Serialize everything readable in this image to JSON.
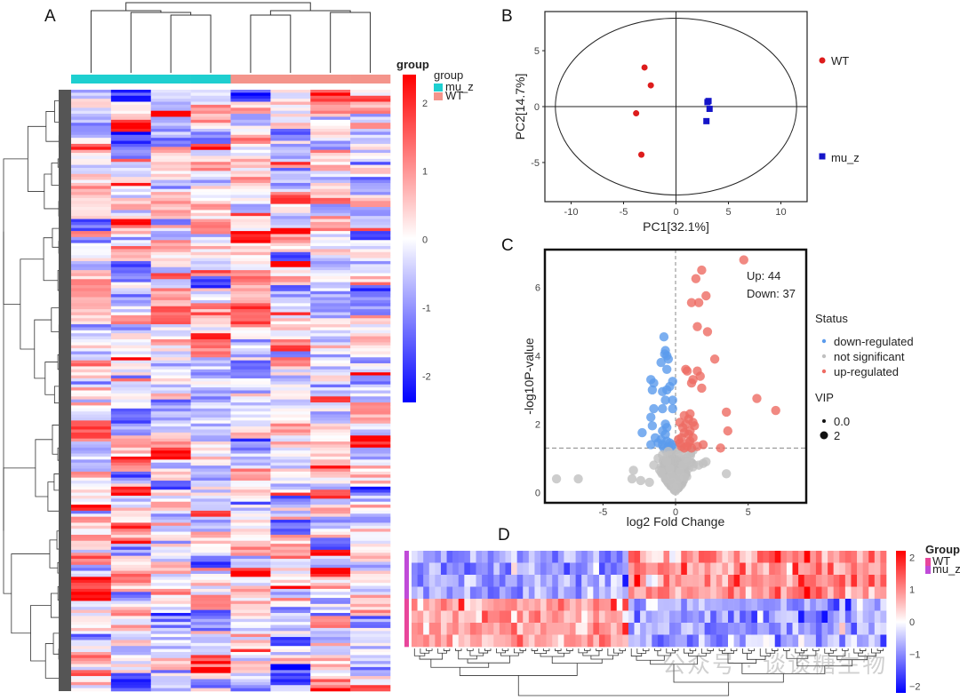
{
  "panels": {
    "A": {
      "label": "A"
    },
    "B": {
      "label": "B"
    },
    "C": {
      "label": "C"
    },
    "D": {
      "label": "D"
    }
  },
  "watermark": "公众号 · 谈谈糖生物",
  "chart_data": [
    {
      "id": "A",
      "type": "heatmap",
      "title": "",
      "columns": 8,
      "rows": 200,
      "column_groups": [
        "mu_z",
        "mu_z",
        "mu_z",
        "mu_z",
        "WT",
        "WT",
        "WT",
        "WT"
      ],
      "annotation_title": "group",
      "legend_title": "group",
      "legend": [
        {
          "name": "mu_z",
          "color": "#1ecfd0"
        },
        {
          "name": "WT",
          "color": "#f4948b"
        }
      ],
      "colorbar": {
        "range": [
          -2.4,
          2.4
        ],
        "ticks": [
          2,
          1,
          0,
          -1,
          -2
        ],
        "low": "#0000ff",
        "mid": "#ffffff",
        "high": "#ff0000"
      },
      "row_dendrogram": true,
      "column_dendrogram": true
    },
    {
      "id": "B",
      "type": "scatter",
      "title": "",
      "xlabel": "PC1[32.1%]",
      "ylabel": "PC2[14.7%]",
      "xlim": [
        -12.5,
        12.5
      ],
      "ylim": [
        -8.5,
        8.5
      ],
      "xticks": [
        -10,
        -5,
        0,
        5,
        10
      ],
      "yticks": [
        5,
        0,
        -5
      ],
      "ellipse": {
        "rx": 11.5,
        "ry": 7.9
      },
      "series": [
        {
          "name": "WT",
          "color": "#dd1c1c",
          "marker": "circle",
          "points": [
            [
              -3.0,
              3.5
            ],
            [
              -2.4,
              1.9
            ],
            [
              -3.8,
              -0.6
            ],
            [
              -3.3,
              -4.3
            ]
          ]
        },
        {
          "name": "mu_z",
          "color": "#1414c8",
          "marker": "square",
          "points": [
            [
              3.1,
              0.5
            ],
            [
              3.0,
              0.4
            ],
            [
              3.2,
              -0.2
            ],
            [
              2.9,
              -1.3
            ]
          ]
        }
      ],
      "legend": "right"
    },
    {
      "id": "C",
      "type": "scatter",
      "title": "",
      "xlabel": "log2 Fold Change",
      "ylabel": "-log10P-value",
      "xlim": [
        -9,
        9
      ],
      "ylim": [
        -0.3,
        7.1
      ],
      "xticks": [
        -5,
        0,
        5
      ],
      "yticks": [
        0,
        2,
        4,
        6
      ],
      "hline": 1.3,
      "vline": 0,
      "annotation": [
        "Up: 44",
        "Down: 37"
      ],
      "legend_status_title": "Status",
      "legend_vip_title": "VIP",
      "legend_vip": [
        "0.0",
        "2"
      ],
      "series": [
        {
          "name": "down-regulated",
          "color": "#5b9bec",
          "points": [
            [
              -0.8,
              4.55
            ],
            [
              -0.7,
              4.15
            ],
            [
              -0.75,
              4.05
            ],
            [
              -0.6,
              4.0
            ],
            [
              -0.5,
              3.9
            ],
            [
              -1.0,
              3.8
            ],
            [
              -0.6,
              3.6
            ],
            [
              -1.7,
              3.3
            ],
            [
              -1.5,
              3.2
            ],
            [
              -0.2,
              3.25
            ],
            [
              -1.6,
              3.0
            ],
            [
              -0.9,
              2.95
            ],
            [
              -0.6,
              3.0
            ],
            [
              -0.4,
              3.1
            ],
            [
              -0.7,
              2.7
            ],
            [
              -0.2,
              2.7
            ],
            [
              -1.5,
              2.45
            ],
            [
              -0.9,
              2.45
            ],
            [
              -0.2,
              2.45
            ],
            [
              -1.7,
              2.2
            ],
            [
              -0.7,
              2.0
            ],
            [
              -0.6,
              1.9
            ],
            [
              -1.6,
              1.95
            ],
            [
              -2.3,
              1.75
            ],
            [
              -1.4,
              1.6
            ],
            [
              -0.9,
              1.8
            ],
            [
              -0.7,
              1.7
            ],
            [
              -1.7,
              1.4
            ],
            [
              -0.9,
              1.4
            ],
            [
              -0.5,
              1.35
            ],
            [
              -0.3,
              1.35
            ],
            [
              -0.6,
              1.5
            ],
            [
              -1.0,
              1.55
            ],
            [
              -0.4,
              1.45
            ],
            [
              -0.8,
              1.3
            ],
            [
              -0.2,
              1.4
            ],
            [
              -1.2,
              1.45
            ]
          ]
        },
        {
          "name": "not significant",
          "color": "#c0c0c0",
          "points": [
            [
              -8.2,
              0.4
            ],
            [
              -6.7,
              0.4
            ],
            [
              -2.9,
              0.65
            ],
            [
              -3.0,
              0.4
            ],
            [
              -2.4,
              0.35
            ],
            [
              -1.8,
              0.3
            ],
            [
              -1.5,
              0.8
            ],
            [
              -1.2,
              1.0
            ],
            [
              -0.9,
              1.1
            ],
            [
              -0.6,
              0.9
            ],
            [
              -0.4,
              0.7
            ],
            [
              -0.3,
              0.5
            ],
            [
              -0.2,
              0.3
            ],
            [
              -0.1,
              0.15
            ],
            [
              0.0,
              0.05
            ],
            [
              0.1,
              0.2
            ],
            [
              0.2,
              0.4
            ],
            [
              0.3,
              0.6
            ],
            [
              0.5,
              0.8
            ],
            [
              0.7,
              1.0
            ],
            [
              0.9,
              0.9
            ],
            [
              1.2,
              0.75
            ],
            [
              1.6,
              0.8
            ],
            [
              1.9,
              0.85
            ],
            [
              2.1,
              0.9
            ],
            [
              1.0,
              1.15
            ],
            [
              -1.0,
              0.6
            ],
            [
              -0.7,
              0.4
            ],
            [
              0.6,
              0.45
            ],
            [
              3.5,
              0.55
            ],
            [
              -0.5,
              1.2
            ],
            [
              0.4,
              1.15
            ]
          ]
        },
        {
          "name": "up-regulated",
          "color": "#ee6b63",
          "points": [
            [
              4.7,
              6.8
            ],
            [
              1.8,
              6.5
            ],
            [
              1.4,
              6.25
            ],
            [
              2.1,
              5.75
            ],
            [
              1.1,
              5.55
            ],
            [
              1.6,
              5.55
            ],
            [
              1.5,
              4.85
            ],
            [
              2.2,
              4.7
            ],
            [
              2.7,
              3.9
            ],
            [
              0.7,
              3.6
            ],
            [
              0.8,
              3.55
            ],
            [
              1.5,
              3.55
            ],
            [
              1.7,
              3.4
            ],
            [
              1.2,
              3.3
            ],
            [
              1.1,
              3.2
            ],
            [
              1.8,
              3.05
            ],
            [
              5.6,
              2.75
            ],
            [
              6.9,
              2.4
            ],
            [
              3.5,
              2.35
            ],
            [
              0.6,
              2.25
            ],
            [
              1.0,
              2.3
            ],
            [
              0.9,
              2.15
            ],
            [
              1.2,
              2.05
            ],
            [
              0.3,
              2.05
            ],
            [
              3.6,
              1.8
            ],
            [
              1.0,
              1.8
            ],
            [
              0.9,
              1.7
            ],
            [
              0.4,
              1.6
            ],
            [
              0.3,
              1.45
            ],
            [
              1.2,
              1.6
            ],
            [
              1.9,
              1.4
            ],
            [
              0.8,
              1.35
            ],
            [
              1.1,
              1.3
            ],
            [
              3.1,
              1.3
            ],
            [
              0.6,
              1.75
            ],
            [
              0.5,
              1.9
            ],
            [
              0.7,
              2.0
            ],
            [
              1.3,
              1.95
            ],
            [
              0.4,
              1.35
            ],
            [
              0.9,
              1.45
            ],
            [
              1.5,
              1.35
            ],
            [
              0.2,
              1.55
            ],
            [
              1.0,
              1.5
            ],
            [
              0.6,
              1.3
            ]
          ]
        }
      ]
    },
    {
      "id": "D",
      "type": "heatmap",
      "title": "",
      "rows": 8,
      "columns": 81,
      "row_groups": [
        "mu_z",
        "mu_z",
        "mu_z",
        "mu_z",
        "WT",
        "WT",
        "WT",
        "WT"
      ],
      "legend_title": "Group",
      "legend": [
        {
          "name": "WT",
          "color": "#e8469b"
        },
        {
          "name": "mu_z",
          "color": "#c04bd8"
        }
      ],
      "colorbar": {
        "range": [
          -2.2,
          2.2
        ],
        "ticks": [
          2,
          1,
          0,
          -1,
          -2
        ],
        "low": "#0000ff",
        "mid": "#ffffff",
        "high": "#ff0000"
      },
      "column_blocks": [
        {
          "n": 37,
          "pattern": "mu_z low, WT high"
        },
        {
          "n": 44,
          "pattern": "mu_z high, WT low"
        }
      ],
      "column_dendrogram": true
    }
  ]
}
